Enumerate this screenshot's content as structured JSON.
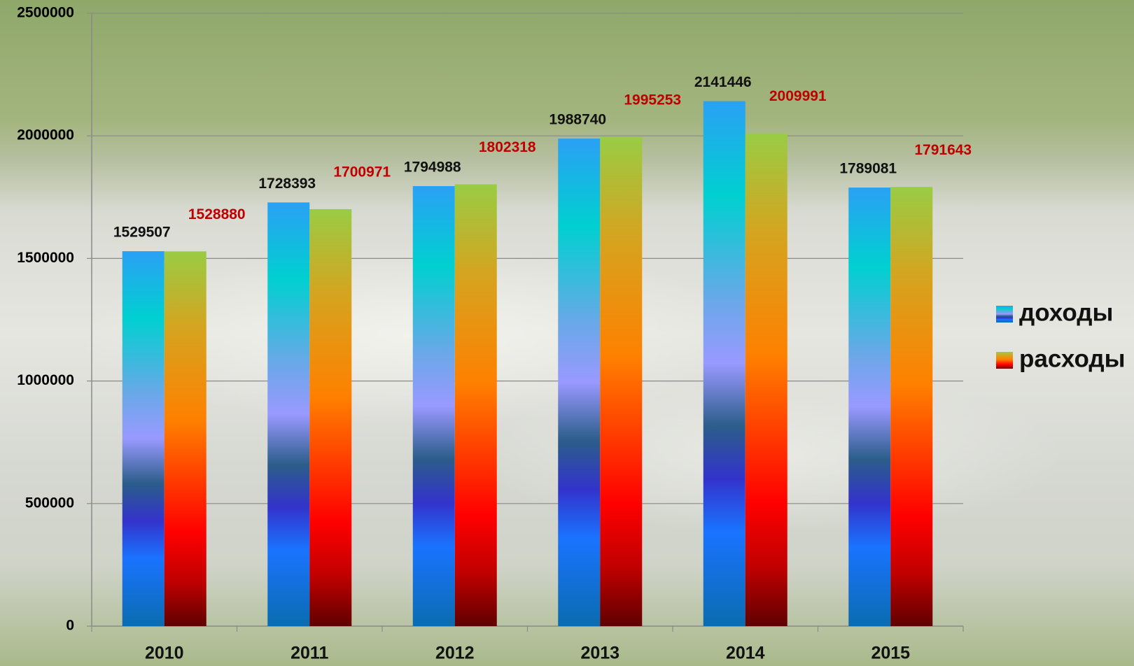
{
  "chart_data": {
    "type": "bar",
    "categories": [
      "2010",
      "2011",
      "2012",
      "2013",
      "2014",
      "2015"
    ],
    "series": [
      {
        "name": "доходы",
        "values": [
          1529507,
          1728393,
          1794988,
          1988740,
          2141446,
          1789081
        ]
      },
      {
        "name": "расходы",
        "values": [
          1528880,
          1700971,
          1802318,
          1995253,
          2009991,
          1791643
        ]
      }
    ],
    "ylim": [
      0,
      2500000
    ],
    "yticks": [
      0,
      500000,
      1000000,
      1500000,
      2000000,
      2500000
    ],
    "grid": true
  }
}
